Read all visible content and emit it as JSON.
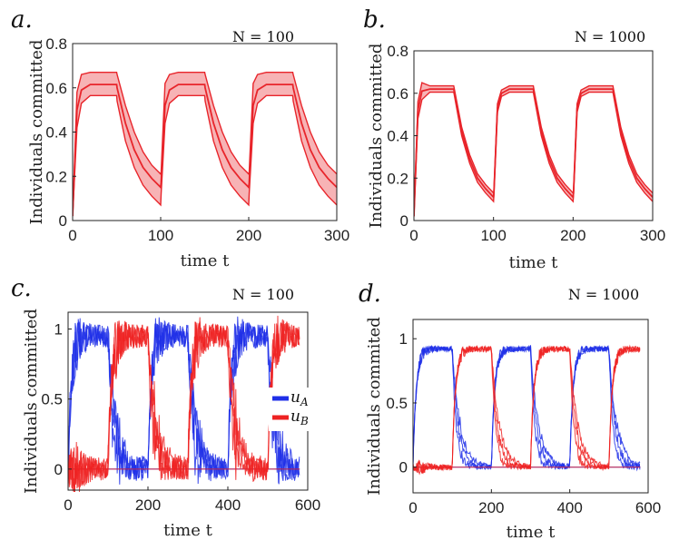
{
  "chart_data": [
    {
      "panel": "a.",
      "title": "N = 100",
      "type": "line",
      "xlabel": "time t",
      "ylabel": "Individuals committed",
      "xlim": [
        0,
        300
      ],
      "ylim": [
        0,
        0.8
      ],
      "xticks": [
        0,
        100,
        200,
        300
      ],
      "yticks": [
        0,
        0.2,
        0.4,
        0.6,
        0.8
      ],
      "series": [
        {
          "name": "committed",
          "color": "#e8252b",
          "x": [
            0,
            5,
            10,
            20,
            30,
            50,
            50.5,
            60,
            70,
            80,
            90,
            100,
            100.5,
            105,
            110,
            120,
            130,
            150,
            150.5,
            160,
            170,
            180,
            190,
            200,
            200.5,
            205,
            210,
            220,
            230,
            250,
            250.5,
            260,
            270,
            280,
            290,
            300
          ],
          "mean": [
            0.02,
            0.5,
            0.59,
            0.615,
            0.615,
            0.615,
            0.6,
            0.44,
            0.32,
            0.24,
            0.19,
            0.15,
            0.17,
            0.52,
            0.59,
            0.615,
            0.615,
            0.615,
            0.6,
            0.44,
            0.32,
            0.24,
            0.19,
            0.15,
            0.17,
            0.52,
            0.59,
            0.615,
            0.615,
            0.615,
            0.6,
            0.44,
            0.32,
            0.24,
            0.19,
            0.15
          ],
          "upper": [
            0.02,
            0.58,
            0.66,
            0.67,
            0.67,
            0.67,
            0.66,
            0.52,
            0.4,
            0.31,
            0.25,
            0.21,
            0.22,
            0.62,
            0.66,
            0.67,
            0.67,
            0.67,
            0.66,
            0.52,
            0.4,
            0.31,
            0.25,
            0.21,
            0.22,
            0.62,
            0.66,
            0.67,
            0.67,
            0.67,
            0.66,
            0.52,
            0.4,
            0.31,
            0.25,
            0.21
          ],
          "lower": [
            0.02,
            0.42,
            0.53,
            0.565,
            0.565,
            0.565,
            0.54,
            0.36,
            0.24,
            0.16,
            0.11,
            0.07,
            0.12,
            0.44,
            0.53,
            0.565,
            0.565,
            0.565,
            0.54,
            0.36,
            0.24,
            0.16,
            0.11,
            0.07,
            0.12,
            0.44,
            0.53,
            0.565,
            0.565,
            0.565,
            0.54,
            0.36,
            0.24,
            0.16,
            0.11,
            0.07
          ]
        }
      ]
    },
    {
      "panel": "b.",
      "title": "N = 1000",
      "type": "line",
      "xlabel": "time t",
      "ylabel": "Individuals committed",
      "xlim": [
        0,
        300
      ],
      "ylim": [
        0,
        0.8
      ],
      "xticks": [
        0,
        100,
        200,
        300
      ],
      "yticks": [
        0,
        0.2,
        0.4,
        0.6,
        0.8
      ],
      "series": [
        {
          "name": "committed",
          "color": "#e8252b",
          "x": [
            0,
            5,
            10,
            20,
            30,
            50,
            50.5,
            60,
            70,
            80,
            90,
            100,
            100.5,
            105,
            110,
            120,
            130,
            150,
            150.5,
            160,
            170,
            180,
            190,
            200,
            200.5,
            205,
            210,
            220,
            230,
            250,
            250.5,
            260,
            270,
            280,
            290,
            300
          ],
          "mean": [
            0.02,
            0.52,
            0.61,
            0.62,
            0.62,
            0.62,
            0.61,
            0.42,
            0.29,
            0.2,
            0.15,
            0.11,
            0.13,
            0.53,
            0.6,
            0.62,
            0.62,
            0.62,
            0.61,
            0.42,
            0.29,
            0.2,
            0.15,
            0.11,
            0.13,
            0.53,
            0.6,
            0.62,
            0.62,
            0.62,
            0.61,
            0.42,
            0.29,
            0.2,
            0.15,
            0.11
          ],
          "upper": [
            0.02,
            0.56,
            0.65,
            0.635,
            0.635,
            0.635,
            0.625,
            0.44,
            0.31,
            0.22,
            0.17,
            0.13,
            0.14,
            0.55,
            0.615,
            0.635,
            0.635,
            0.635,
            0.625,
            0.44,
            0.31,
            0.22,
            0.17,
            0.13,
            0.14,
            0.55,
            0.615,
            0.635,
            0.635,
            0.635,
            0.625,
            0.44,
            0.31,
            0.22,
            0.17,
            0.13
          ],
          "lower": [
            0.02,
            0.48,
            0.57,
            0.605,
            0.605,
            0.605,
            0.595,
            0.4,
            0.27,
            0.18,
            0.13,
            0.09,
            0.12,
            0.51,
            0.585,
            0.605,
            0.605,
            0.605,
            0.595,
            0.4,
            0.27,
            0.18,
            0.13,
            0.09,
            0.12,
            0.51,
            0.585,
            0.605,
            0.605,
            0.605,
            0.595,
            0.4,
            0.27,
            0.18,
            0.13,
            0.09
          ]
        }
      ]
    },
    {
      "panel": "c.",
      "title": "N = 100",
      "type": "line",
      "xlabel": "time t",
      "ylabel": "Individuals committed",
      "xlim": [
        0,
        600
      ],
      "ylim": [
        -0.15,
        1.12
      ],
      "xticks": [
        0,
        200,
        400,
        600
      ],
      "yticks": [
        0,
        0.5,
        1
      ],
      "ytick_labels": [
        "0",
        "0.5",
        "1"
      ],
      "legend": [
        "u_A",
        "u_B"
      ],
      "legend_position": "center-right",
      "switch_period": 100,
      "series": [
        {
          "name": "u_A",
          "color": "#1f2fe8",
          "high": 0.95,
          "low": 0.0,
          "high_from": 0,
          "noise": 0.08
        },
        {
          "name": "u_B",
          "color": "#ee2222",
          "high": 0.95,
          "low": 0.0,
          "high_from": 100,
          "noise": 0.08
        }
      ]
    },
    {
      "panel": "d.",
      "title": "N = 1000",
      "type": "line",
      "xlabel": "time t",
      "ylabel": "Individuals commited",
      "xlim": [
        0,
        600
      ],
      "ylim": [
        -0.2,
        1.15
      ],
      "xticks": [
        0,
        200,
        400,
        600
      ],
      "yticks": [
        0,
        0.5,
        1
      ],
      "ytick_labels": [
        "0",
        "0.5",
        "1"
      ],
      "switch_period": 100,
      "series": [
        {
          "name": "u_A",
          "color": "#1f2fe8",
          "high": 0.92,
          "low": 0.0,
          "high_from": 0,
          "noise": 0.02
        },
        {
          "name": "u_B",
          "color": "#ee2222",
          "high": 0.92,
          "low": 0.0,
          "high_from": 100,
          "noise": 0.02
        }
      ]
    }
  ],
  "legend_labels": {
    "u_A": {
      "base": "u",
      "sub": "A"
    },
    "u_B": {
      "base": "u",
      "sub": "B"
    }
  }
}
